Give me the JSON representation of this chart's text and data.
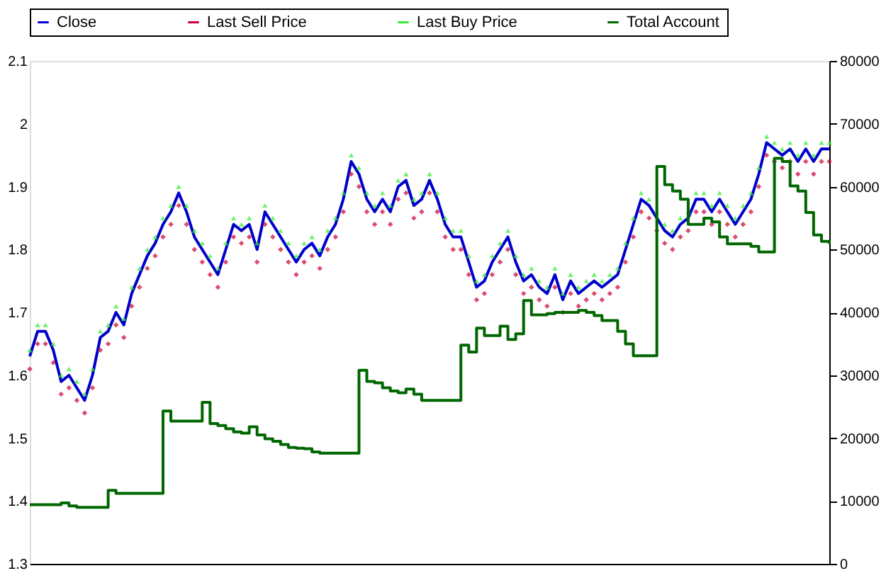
{
  "chart_data": {
    "type": "line",
    "categories": [
      null,
      null,
      null,
      null,
      null,
      null,
      null,
      null,
      null,
      null,
      null,
      null,
      null,
      null,
      null,
      null,
      null,
      null,
      null,
      null,
      null,
      null,
      null,
      null,
      null,
      null,
      null,
      null,
      null,
      null,
      null,
      null,
      null,
      null,
      null,
      null,
      null,
      null,
      null,
      null,
      null,
      null,
      null,
      null,
      null,
      null,
      null,
      null,
      null,
      null,
      null,
      null,
      null,
      null,
      null,
      null,
      null,
      null,
      null,
      null,
      null,
      null,
      null,
      null,
      null,
      null,
      null,
      null,
      null,
      null,
      null,
      null,
      null,
      null,
      null,
      null,
      null,
      null,
      null,
      null,
      null,
      null,
      null,
      null,
      null,
      null,
      null,
      null,
      null,
      null,
      null,
      null,
      null,
      null,
      null,
      null,
      null,
      null,
      null,
      null,
      null,
      null,
      null
    ],
    "ylim": [
      1.3,
      2.1
    ],
    "yticks": [
      1.3,
      1.4,
      1.5,
      1.6,
      1.7,
      1.8,
      1.9,
      2,
      2.1
    ],
    "y2lim": [
      0,
      80000
    ],
    "y2ticks": [
      0,
      10000,
      20000,
      30000,
      40000,
      50000,
      60000,
      70000,
      80000
    ],
    "tick_labels": "y",
    "grid": false,
    "legend": "top",
    "series": [
      {
        "name": "Close",
        "color": "#0000cc",
        "values": [
          1.63,
          1.67,
          1.67,
          1.64,
          1.59,
          1.6,
          1.58,
          1.56,
          1.6,
          1.66,
          1.67,
          1.7,
          1.68,
          1.73,
          1.76,
          1.79,
          1.81,
          1.84,
          1.86,
          1.89,
          1.86,
          1.82,
          1.8,
          1.78,
          1.76,
          1.8,
          1.84,
          1.83,
          1.84,
          1.8,
          1.86,
          1.84,
          1.82,
          1.8,
          1.78,
          1.8,
          1.81,
          1.79,
          1.82,
          1.84,
          1.88,
          1.94,
          1.92,
          1.88,
          1.86,
          1.88,
          1.86,
          1.9,
          1.91,
          1.87,
          1.88,
          1.91,
          1.88,
          1.84,
          1.82,
          1.82,
          1.78,
          1.74,
          1.75,
          1.78,
          1.8,
          1.82,
          1.78,
          1.75,
          1.76,
          1.74,
          1.73,
          1.76,
          1.72,
          1.75,
          1.73,
          1.74,
          1.75,
          1.74,
          1.75,
          1.76,
          1.8,
          1.84,
          1.88,
          1.87,
          1.85,
          1.83,
          1.82,
          1.84,
          1.85,
          1.88,
          1.88,
          1.86,
          1.88,
          1.86,
          1.84,
          1.86,
          1.88,
          1.92,
          1.97,
          1.96,
          1.95,
          1.96,
          1.94,
          1.96,
          1.94,
          1.96,
          1.96
        ]
      },
      {
        "name": "Last Sell Price",
        "type": "scatter",
        "marker": "diamond",
        "color": "#cc0033",
        "values": [
          1.61,
          1.65,
          1.65,
          1.62,
          1.57,
          1.58,
          1.56,
          1.54,
          1.58,
          1.64,
          1.65,
          1.68,
          1.66,
          1.71,
          1.74,
          1.77,
          1.79,
          1.82,
          1.84,
          1.87,
          1.84,
          1.8,
          1.78,
          1.76,
          1.74,
          1.78,
          1.82,
          1.81,
          1.82,
          1.78,
          1.84,
          1.82,
          1.8,
          1.78,
          1.76,
          1.78,
          1.79,
          1.77,
          1.8,
          1.82,
          1.86,
          1.92,
          1.9,
          1.86,
          1.84,
          1.86,
          1.84,
          1.88,
          1.89,
          1.85,
          1.86,
          1.89,
          1.86,
          1.82,
          1.8,
          1.8,
          1.76,
          1.72,
          1.73,
          1.76,
          1.78,
          1.8,
          1.76,
          1.73,
          1.74,
          1.72,
          1.71,
          1.74,
          1.7,
          1.73,
          1.71,
          1.72,
          1.73,
          1.72,
          1.73,
          1.74,
          1.78,
          1.82,
          1.86,
          1.85,
          1.83,
          1.81,
          1.8,
          1.82,
          1.83,
          1.86,
          1.86,
          1.84,
          1.86,
          1.84,
          1.82,
          1.84,
          1.86,
          1.9,
          1.95,
          1.94,
          1.93,
          1.94,
          1.92,
          1.94,
          1.92,
          1.94,
          1.94
        ]
      },
      {
        "name": "Last Buy Price",
        "type": "scatter",
        "marker": "triangle",
        "color": "#33ee33",
        "values": [
          1.64,
          1.68,
          1.68,
          1.65,
          1.6,
          1.61,
          1.59,
          1.57,
          1.61,
          1.67,
          1.68,
          1.71,
          1.69,
          1.74,
          1.77,
          1.8,
          1.82,
          1.85,
          1.87,
          1.9,
          1.87,
          1.83,
          1.81,
          1.79,
          1.77,
          1.81,
          1.85,
          1.84,
          1.85,
          1.81,
          1.87,
          1.85,
          1.83,
          1.81,
          1.79,
          1.81,
          1.82,
          1.8,
          1.83,
          1.85,
          1.89,
          1.95,
          1.93,
          1.89,
          1.87,
          1.89,
          1.87,
          1.91,
          1.92,
          1.88,
          1.89,
          1.92,
          1.89,
          1.85,
          1.83,
          1.83,
          1.79,
          1.75,
          1.76,
          1.79,
          1.81,
          1.83,
          1.79,
          1.76,
          1.77,
          1.75,
          1.74,
          1.77,
          1.73,
          1.76,
          1.74,
          1.75,
          1.76,
          1.75,
          1.76,
          1.77,
          1.81,
          1.85,
          1.89,
          1.88,
          1.86,
          1.84,
          1.83,
          1.85,
          1.86,
          1.89,
          1.89,
          1.87,
          1.89,
          1.87,
          1.85,
          1.87,
          1.89,
          1.93,
          1.98,
          1.97,
          1.96,
          1.97,
          1.95,
          1.97,
          1.95,
          1.97,
          1.97
        ]
      },
      {
        "name": "Total Account",
        "type": "step",
        "axis": "y2",
        "color": "#006600",
        "values": [
          9400,
          9400,
          9400,
          9400,
          9700,
          9200,
          9000,
          9000,
          9000,
          9000,
          11700,
          11200,
          11200,
          11200,
          11200,
          11200,
          11200,
          24300,
          22700,
          22700,
          22700,
          22700,
          25700,
          22300,
          22000,
          21500,
          21000,
          20800,
          21800,
          20500,
          19900,
          19500,
          19000,
          18500,
          18400,
          18300,
          17800,
          17600,
          17600,
          17600,
          17600,
          17600,
          30800,
          29000,
          28800,
          28000,
          27500,
          27200,
          27800,
          27000,
          26000,
          26000,
          26000,
          26000,
          26000,
          34800,
          33700,
          37500,
          36300,
          36300,
          37800,
          35700,
          36600,
          41900,
          39600,
          39600,
          39800,
          40000,
          40000,
          40000,
          40300,
          40000,
          39500,
          38700,
          38700,
          37000,
          35000,
          33100,
          33100,
          33100,
          63200,
          60300,
          59300,
          58000,
          54000,
          54000,
          55000,
          54400,
          52000,
          50900,
          50900,
          50900,
          50500,
          49600,
          49600,
          64500,
          64000,
          60100,
          59300,
          55900,
          52300,
          51300,
          50900
        ]
      }
    ]
  }
}
